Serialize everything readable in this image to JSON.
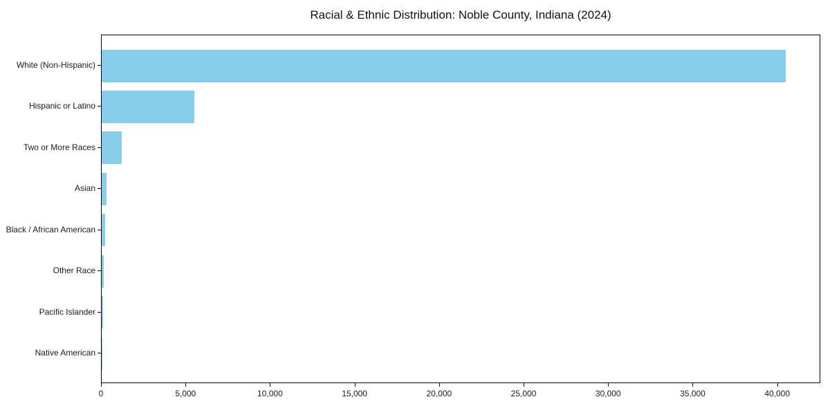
{
  "chart_data": {
    "type": "bar",
    "orientation": "horizontal",
    "title": "Racial & Ethnic Distribution: Noble County, Indiana (2024)",
    "categories": [
      "White (Non-Hispanic)",
      "Hispanic or Latino",
      "Two or More Races",
      "Asian",
      "Black / African American",
      "Other Race",
      "Pacific Islander",
      "Native American"
    ],
    "values": [
      40550,
      5480,
      1180,
      300,
      200,
      130,
      100,
      25
    ],
    "xlabel": "",
    "ylabel": "",
    "xlim": [
      0,
      42550
    ],
    "x_ticks": [
      0,
      5000,
      10000,
      15000,
      20000,
      25000,
      30000,
      35000,
      40000
    ],
    "x_tick_labels": [
      "0",
      "5,000",
      "10,000",
      "15,000",
      "20,000",
      "25,000",
      "30,000",
      "35,000",
      "40,000"
    ],
    "grid": false,
    "legend": null,
    "bar_color": "#87CEEB",
    "axis_color": "#000000",
    "text_color": "#1a1a1a",
    "background_color": "#ffffff"
  }
}
